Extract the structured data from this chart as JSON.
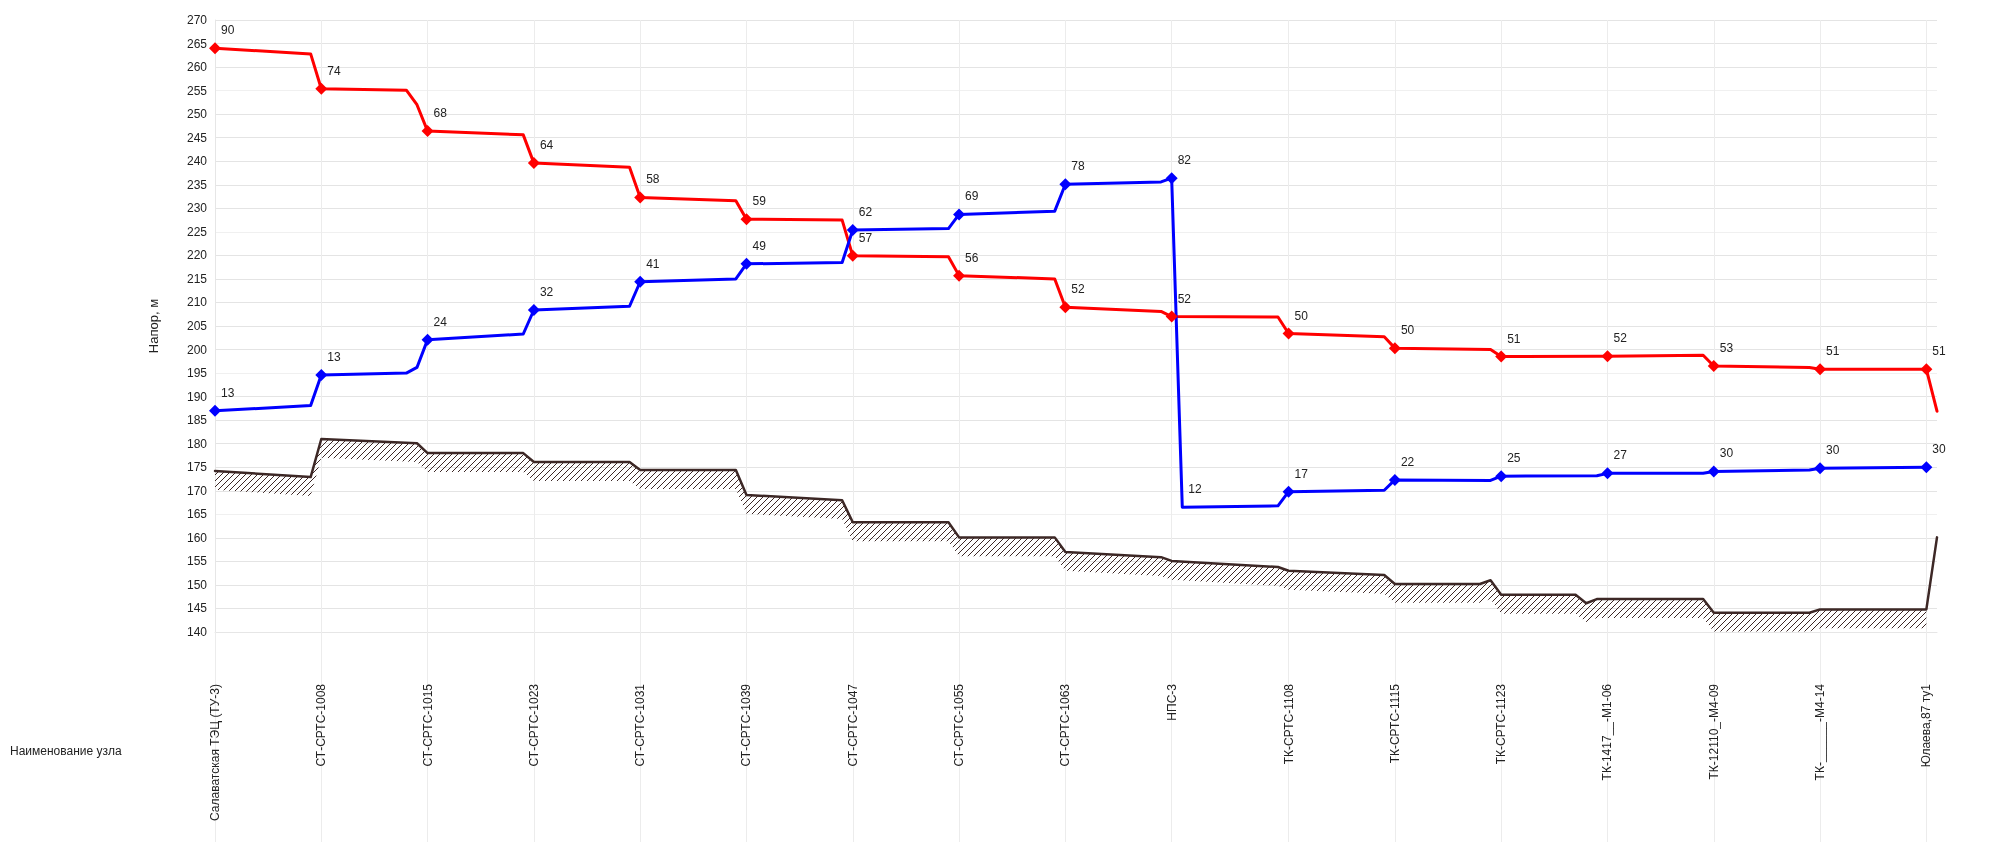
{
  "chart_data": {
    "type": "line",
    "ylabel": "Напор, м",
    "categories": [
      "Салаватская ТЭЦ (ТУ-3)",
      null,
      null,
      null,
      null,
      null,
      null,
      null,
      null,
      null,
      "СТ-СРТС-1008",
      null,
      null,
      null,
      null,
      null,
      null,
      null,
      null,
      null,
      "СТ-СРТС-1015",
      null,
      null,
      null,
      null,
      null,
      null,
      null,
      null,
      null,
      "СТ-СРТС-1023",
      null,
      null,
      null,
      null,
      null,
      null,
      null,
      null,
      null,
      "СТ-СРТС-1031",
      null,
      null,
      null,
      null,
      null,
      null,
      null,
      null,
      null,
      "СТ-СРТС-1039",
      null,
      null,
      null,
      null,
      null,
      null,
      null,
      null,
      null,
      "СТ-СРТС-1047",
      null,
      null,
      null,
      null,
      null,
      null,
      null,
      null,
      null,
      "СТ-СРТС-1055",
      null,
      null,
      null,
      null,
      null,
      null,
      null,
      null,
      null,
      "СТ-СРТС-1063",
      null,
      null,
      null,
      null,
      null,
      null,
      null,
      null,
      null,
      "НПС-3",
      null,
      null,
      null,
      null,
      null,
      null,
      null,
      null,
      null,
      null,
      "ТК-СРТС-1108",
      null,
      null,
      null,
      null,
      null,
      null,
      null,
      null,
      null,
      "ТК-СРТС-1115",
      null,
      null,
      null,
      null,
      null,
      null,
      null,
      null,
      null,
      "ТК-СРТС-1123",
      null,
      null,
      null,
      null,
      null,
      null,
      null,
      null,
      null,
      "ТК-1417__-М1-06",
      null,
      null,
      null,
      null,
      null,
      null,
      null,
      null,
      null,
      "ТК-12110_-М4-09",
      null,
      null,
      null,
      null,
      null,
      null,
      null,
      null,
      null,
      "ТК-______-М4-14",
      null,
      null,
      null,
      null,
      null,
      null,
      null,
      null,
      null,
      "Юлаева,87 ту1",
      null
    ],
    "ylim": [
      140,
      270
    ],
    "yticks": [
      140,
      145,
      150,
      155,
      160,
      165,
      170,
      175,
      180,
      185,
      190,
      195,
      200,
      205,
      210,
      215,
      220,
      225,
      230,
      235,
      240,
      245,
      250,
      255,
      260,
      265,
      270
    ],
    "grid": true,
    "marker": "diamond",
    "line_style": "solid",
    "series": [
      {
        "color": "#ff0000",
        "values": [
          264,
          null,
          null,
          null,
          null,
          null,
          null,
          null,
          null,
          262.8,
          255.4,
          null,
          null,
          null,
          null,
          null,
          null,
          null,
          255.1,
          252,
          246.4,
          null,
          null,
          null,
          null,
          null,
          null,
          null,
          null,
          245.6,
          239.6,
          null,
          null,
          null,
          null,
          null,
          null,
          null,
          null,
          238.7,
          232.3,
          null,
          null,
          null,
          null,
          null,
          null,
          null,
          null,
          231.6,
          227.7,
          null,
          null,
          null,
          null,
          null,
          null,
          null,
          null,
          227.5,
          219.9,
          null,
          null,
          null,
          null,
          null,
          null,
          null,
          null,
          219.7,
          215.7,
          null,
          null,
          null,
          null,
          null,
          null,
          null,
          null,
          215,
          209,
          null,
          null,
          null,
          null,
          null,
          null,
          null,
          null,
          208.1,
          207,
          null,
          null,
          null,
          null,
          null,
          null,
          null,
          null,
          null,
          206.9,
          203.4,
          null,
          null,
          null,
          null,
          null,
          null,
          null,
          null,
          202.7,
          200.3,
          null,
          null,
          null,
          null,
          null,
          null,
          null,
          null,
          200,
          198.5,
          null,
          null,
          null,
          null,
          null,
          null,
          null,
          null,
          198.6,
          198.6,
          null,
          null,
          null,
          null,
          null,
          null,
          null,
          null,
          198.8,
          196.5,
          null,
          null,
          null,
          null,
          null,
          null,
          null,
          null,
          196.2,
          195.8,
          null,
          null,
          null,
          null,
          null,
          null,
          null,
          null,
          null,
          195.8,
          186.9
        ]
      },
      {
        "color": "#0000ff",
        "values": [
          187,
          null,
          null,
          null,
          null,
          null,
          null,
          null,
          null,
          188.1,
          194.6,
          null,
          null,
          null,
          null,
          null,
          null,
          null,
          195,
          196.2,
          202.1,
          null,
          null,
          null,
          null,
          null,
          null,
          null,
          null,
          203.3,
          208.4,
          null,
          null,
          null,
          null,
          null,
          null,
          null,
          null,
          209.2,
          214.4,
          null,
          null,
          null,
          null,
          null,
          null,
          null,
          null,
          215,
          218.2,
          null,
          null,
          null,
          null,
          null,
          null,
          null,
          null,
          218.5,
          225.4,
          null,
          null,
          null,
          null,
          null,
          null,
          null,
          null,
          225.7,
          228.7,
          null,
          null,
          null,
          null,
          null,
          null,
          null,
          null,
          229.4,
          235.1,
          null,
          null,
          null,
          null,
          null,
          null,
          null,
          null,
          235.6,
          236.4,
          166.5,
          null,
          null,
          null,
          null,
          null,
          null,
          null,
          null,
          166.8,
          169.8,
          null,
          null,
          null,
          null,
          null,
          null,
          null,
          null,
          170.1,
          172.3,
          null,
          null,
          null,
          null,
          null,
          null,
          null,
          null,
          172.2,
          173.1,
          null,
          null,
          null,
          null,
          null,
          null,
          null,
          null,
          173.2,
          173.7,
          null,
          null,
          null,
          null,
          null,
          null,
          null,
          null,
          173.7,
          174.1,
          null,
          null,
          null,
          null,
          null,
          null,
          null,
          null,
          174.4,
          174.8,
          null,
          null,
          null,
          null,
          null,
          null,
          null,
          null,
          null,
          175,
          null
        ]
      },
      {
        "color": "#3d2826",
        "marker": "none",
        "values": [
          174.2,
          null,
          null,
          null,
          null,
          null,
          null,
          null,
          null,
          172.9,
          181,
          null,
          null,
          null,
          null,
          null,
          null,
          null,
          null,
          180.1,
          178,
          null,
          null,
          null,
          null,
          null,
          null,
          null,
          null,
          178,
          176.1,
          null,
          null,
          null,
          null,
          null,
          null,
          null,
          null,
          176.1,
          174.4,
          null,
          null,
          null,
          null,
          null,
          null,
          null,
          null,
          174.4,
          169.1,
          null,
          null,
          null,
          null,
          null,
          null,
          null,
          null,
          168,
          163.3,
          null,
          null,
          null,
          null,
          null,
          null,
          null,
          null,
          163.3,
          160.1,
          null,
          null,
          null,
          null,
          null,
          null,
          null,
          null,
          160.1,
          157,
          null,
          null,
          null,
          null,
          null,
          null,
          null,
          null,
          155.9,
          155.1,
          null,
          null,
          null,
          null,
          null,
          null,
          null,
          null,
          null,
          153.8,
          153,
          null,
          null,
          null,
          null,
          null,
          null,
          null,
          null,
          152.1,
          150.2,
          null,
          null,
          null,
          null,
          null,
          null,
          null,
          150.2,
          151,
          147.9,
          null,
          null,
          null,
          null,
          null,
          null,
          147.9,
          146.1,
          147,
          147,
          null,
          null,
          null,
          null,
          null,
          null,
          null,
          null,
          147,
          144.1,
          null,
          null,
          null,
          null,
          null,
          null,
          null,
          null,
          144.1,
          144.8,
          null,
          null,
          null,
          null,
          null,
          null,
          null,
          null,
          null,
          144.8,
          160.1
        ],
        "lower": [
          170.2,
          null,
          null,
          null,
          null,
          null,
          null,
          null,
          null,
          168.9,
          177,
          null,
          null,
          null,
          null,
          null,
          null,
          null,
          null,
          176.1,
          174,
          null,
          null,
          null,
          null,
          null,
          null,
          null,
          null,
          174,
          172.1,
          null,
          null,
          null,
          null,
          null,
          null,
          null,
          null,
          172.1,
          170.4,
          null,
          null,
          null,
          null,
          null,
          null,
          null,
          null,
          170.4,
          165.1,
          null,
          null,
          null,
          null,
          null,
          null,
          null,
          null,
          164,
          159.3,
          null,
          null,
          null,
          null,
          null,
          null,
          null,
          null,
          159.3,
          156.1,
          null,
          null,
          null,
          null,
          null,
          null,
          null,
          null,
          156.1,
          153,
          null,
          null,
          null,
          null,
          null,
          null,
          null,
          null,
          151.9,
          151.1,
          null,
          null,
          null,
          null,
          null,
          null,
          null,
          null,
          null,
          149.8,
          149,
          null,
          null,
          null,
          null,
          null,
          null,
          null,
          null,
          148.1,
          146.2,
          null,
          null,
          null,
          null,
          null,
          null,
          null,
          146.2,
          147,
          143.9,
          null,
          null,
          null,
          null,
          null,
          null,
          143.9,
          142.1,
          143,
          143,
          null,
          null,
          null,
          null,
          null,
          null,
          null,
          null,
          143,
          140.1,
          null,
          null,
          null,
          null,
          null,
          null,
          null,
          null,
          140.1,
          140.8,
          null,
          null,
          null,
          null,
          null,
          null,
          null,
          null,
          null,
          140.8,
          null
        ],
        "upper": [
          174.2,
          null,
          null,
          null,
          null,
          null,
          null,
          null,
          null,
          172.9,
          181,
          null,
          null,
          null,
          null,
          null,
          null,
          null,
          null,
          180.1,
          178,
          null,
          null,
          null,
          null,
          null,
          null,
          null,
          null,
          178,
          176.1,
          null,
          null,
          null,
          null,
          null,
          null,
          null,
          null,
          176.1,
          174.4,
          null,
          null,
          null,
          null,
          null,
          null,
          null,
          null,
          174.4,
          169.1,
          null,
          null,
          null,
          null,
          null,
          null,
          null,
          null,
          168,
          163.3,
          null,
          null,
          null,
          null,
          null,
          null,
          null,
          null,
          163.3,
          160.1,
          null,
          null,
          null,
          null,
          null,
          null,
          null,
          null,
          160.1,
          157,
          null,
          null,
          null,
          null,
          null,
          null,
          null,
          null,
          155.9,
          155.1,
          null,
          null,
          null,
          null,
          null,
          null,
          null,
          null,
          null,
          153.8,
          153,
          null,
          null,
          null,
          null,
          null,
          null,
          null,
          null,
          152.1,
          150.2,
          null,
          null,
          null,
          null,
          null,
          null,
          null,
          150.2,
          151,
          147.9,
          null,
          null,
          null,
          null,
          null,
          null,
          147.9,
          146.1,
          147,
          147,
          null,
          null,
          null,
          null,
          null,
          null,
          null,
          null,
          147,
          144.1,
          null,
          null,
          null,
          null,
          null,
          null,
          null,
          null,
          144.1,
          144.8,
          null,
          null,
          null,
          null,
          null,
          null,
          null,
          null,
          null,
          144.8,
          null
        ]
      }
    ],
    "annotations": [
      "Наименование узла",
      {
        "text": "90",
        "x": "Салаватская ТЭЦ (ТУ-3)",
        "y": 264
      },
      {
        "text": "74",
        "x": "СТ-СРТС-1008",
        "y": 255.4
      },
      {
        "text": "68",
        "x": "СТ-СРТС-1015",
        "y": 246.4
      },
      {
        "text": "64",
        "x": "СТ-СРТС-1023",
        "y": 239.6
      },
      {
        "text": "58",
        "x": "СТ-СРТС-1031",
        "y": 232.3
      },
      {
        "text": "59",
        "x": "СТ-СРТС-1039",
        "y": 227.7
      },
      {
        "text": "57",
        "x": "СТ-СРТС-1047",
        "y": 219.9
      },
      {
        "text": "56",
        "x": "СТ-СРТС-1055",
        "y": 215.7
      },
      {
        "text": "52",
        "x": "СТ-СРТС-1063",
        "y": 209
      },
      {
        "text": "52",
        "x": "НПС-3",
        "y": 207
      },
      {
        "text": "50",
        "x": "ТК-СРТС-1108",
        "y": 203.4
      },
      {
        "text": "50",
        "x": "ТК-СРТС-1115",
        "y": 200.3
      },
      {
        "text": "51",
        "x": "ТК-СРТС-1123",
        "y": 198.5
      },
      {
        "text": "52",
        "x": "ТК-1417__-М1-06",
        "y": 198.6
      },
      {
        "text": "53",
        "x": "ТК-12110_-М4-09",
        "y": 196.5
      },
      {
        "text": "51",
        "x": "ТК-______-М4-14",
        "y": 195.8
      },
      {
        "text": "51",
        "x": "Юлаева,87 ту1",
        "y": 195.8
      },
      {
        "text": "13",
        "x": "Салаватская ТЭЦ (ТУ-3)",
        "y": 187
      },
      {
        "text": "13",
        "x": "СТ-СРТС-1008",
        "y": 194.6
      },
      {
        "text": "24",
        "x": "СТ-СРТС-1015",
        "y": 202.1
      },
      {
        "text": "32",
        "x": "СТ-СРТС-1023",
        "y": 208.4
      },
      {
        "text": "41",
        "x": "СТ-СРТС-1031",
        "y": 214.4
      },
      {
        "text": "49",
        "x": "СТ-СРТС-1039",
        "y": 218.2
      },
      {
        "text": "62",
        "x": "СТ-СРТС-1047",
        "y": 225.4
      },
      {
        "text": "69",
        "x": "СТ-СРТС-1055",
        "y": 228.7
      },
      {
        "text": "78",
        "x": "СТ-СРТС-1063",
        "y": 235.1
      },
      {
        "text": "82",
        "x": "НПС-3",
        "y": 236.4
      },
      {
        "text": "12",
        "y": 166.5
      },
      {
        "text": "17",
        "x": "ТК-СРТС-1108",
        "y": 169.8
      },
      {
        "text": "22",
        "x": "ТК-СРТС-1115",
        "y": 172.3
      },
      {
        "text": "25",
        "x": "ТК-СРТС-1123",
        "y": 173.1
      },
      {
        "text": "27",
        "x": "ТК-1417__-М1-06",
        "y": 173.7
      },
      {
        "text": "30",
        "x": "ТК-12110_-М4-09",
        "y": 174.1
      },
      {
        "text": "30",
        "x": "ТК-______-М4-14",
        "y": 174.8
      },
      {
        "text": "30",
        "x": "Юлаева,87 ту1",
        "y": 175
      }
    ]
  }
}
